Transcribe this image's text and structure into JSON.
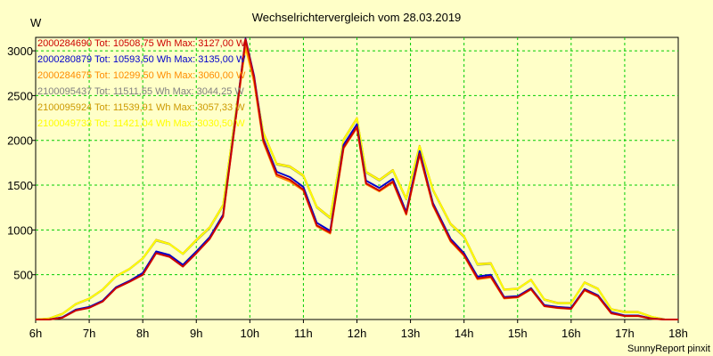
{
  "chart_data": {
    "type": "line",
    "title": "Wechselrichtervergleich vom 28.03.2019",
    "ylabel": "W",
    "xlabel": "",
    "credit": "SunnyReport pinxit",
    "xlim": [
      6,
      18
    ],
    "ylim": [
      0,
      3150
    ],
    "grid": true,
    "legend_position": "top-left",
    "x_ticks": [
      {
        "value": 6,
        "label": "6h"
      },
      {
        "value": 7,
        "label": "7h"
      },
      {
        "value": 8,
        "label": "8h"
      },
      {
        "value": 9,
        "label": "9h"
      },
      {
        "value": 10,
        "label": "10h"
      },
      {
        "value": 11,
        "label": "11h"
      },
      {
        "value": 12,
        "label": "12h"
      },
      {
        "value": 13,
        "label": "13h"
      },
      {
        "value": 14,
        "label": "14h"
      },
      {
        "value": 15,
        "label": "15h"
      },
      {
        "value": 16,
        "label": "16h"
      },
      {
        "value": 17,
        "label": "17h"
      },
      {
        "value": 18,
        "label": "18h"
      }
    ],
    "y_ticks": [
      {
        "value": 500,
        "label": "500"
      },
      {
        "value": 1000,
        "label": "1000"
      },
      {
        "value": 1500,
        "label": "1500"
      },
      {
        "value": 2000,
        "label": "2000"
      },
      {
        "value": 2500,
        "label": "2500"
      },
      {
        "value": 3000,
        "label": "3000"
      }
    ],
    "x": [
      6.0,
      6.25,
      6.5,
      6.75,
      7.0,
      7.25,
      7.5,
      7.75,
      8.0,
      8.25,
      8.5,
      8.75,
      9.0,
      9.25,
      9.5,
      9.75,
      9.92,
      10.08,
      10.25,
      10.5,
      10.75,
      11.0,
      11.25,
      11.5,
      11.75,
      12.0,
      12.17,
      12.42,
      12.67,
      12.92,
      13.17,
      13.42,
      13.75,
      14.0,
      14.25,
      14.5,
      14.75,
      15.0,
      15.25,
      15.5,
      15.75,
      16.0,
      16.25,
      16.5,
      16.75,
      17.0,
      17.25,
      17.5,
      17.75,
      18.0
    ],
    "series": [
      {
        "name": "2000284690",
        "legend_text": "2000284690 Tot: 10508,75 Wh Max: 3127,00 W",
        "color": "#cc0000",
        "values": [
          0,
          0,
          20,
          100,
          130,
          200,
          350,
          420,
          500,
          740,
          700,
          590,
          740,
          900,
          1150,
          2300,
          3127,
          2700,
          2000,
          1620,
          1560,
          1450,
          1050,
          970,
          1920,
          2150,
          1520,
          1440,
          1540,
          1180,
          1850,
          1280,
          880,
          720,
          460,
          480,
          240,
          250,
          340,
          150,
          130,
          120,
          330,
          260,
          70,
          40,
          40,
          10,
          0,
          0
        ]
      },
      {
        "name": "2000280879",
        "legend_text": "2000280879 Tot: 10593,50 Wh Max: 3135,00 W",
        "color": "#0000cc",
        "values": [
          0,
          0,
          25,
          110,
          140,
          210,
          360,
          430,
          520,
          760,
          720,
          610,
          760,
          920,
          1170,
          2320,
          3135,
          2720,
          2020,
          1650,
          1590,
          1480,
          1080,
          990,
          1950,
          2180,
          1550,
          1470,
          1570,
          1200,
          1880,
          1300,
          900,
          740,
          480,
          500,
          250,
          260,
          350,
          160,
          140,
          130,
          340,
          270,
          80,
          45,
          45,
          12,
          0,
          0
        ]
      },
      {
        "name": "2000284675",
        "legend_text": "2000284675 Tot: 10299,50 Wh Max: 3060,00 W",
        "color": "#ff8c00",
        "values": [
          0,
          0,
          22,
          105,
          135,
          205,
          355,
          425,
          510,
          750,
          710,
          600,
          750,
          910,
          1160,
          2310,
          3060,
          2650,
          1980,
          1600,
          1540,
          1440,
          1040,
          960,
          1910,
          2140,
          1510,
          1430,
          1530,
          1170,
          1840,
          1270,
          870,
          710,
          450,
          470,
          235,
          245,
          335,
          148,
          128,
          118,
          325,
          255,
          68,
          38,
          38,
          9,
          0,
          0
        ]
      },
      {
        "name": "2100095437",
        "legend_text": "2100095437 Tot: 11511,55 Wh Max: 3044,25 W",
        "color": "#808080",
        "values": [
          0,
          10,
          60,
          170,
          230,
          330,
          480,
          560,
          680,
          880,
          840,
          730,
          880,
          1020,
          1270,
          2360,
          3044,
          2660,
          2080,
          1730,
          1700,
          1600,
          1250,
          1130,
          2000,
          2240,
          1640,
          1550,
          1660,
          1340,
          1930,
          1440,
          1060,
          920,
          610,
          620,
          330,
          340,
          440,
          220,
          180,
          180,
          410,
          340,
          110,
          80,
          80,
          30,
          0,
          0
        ]
      },
      {
        "name": "2100095924",
        "legend_text": "2100095924 Tot: 11539,91 Wh Max: 3057,33 W",
        "color": "#cc9900",
        "values": [
          0,
          12,
          65,
          175,
          235,
          335,
          485,
          565,
          685,
          890,
          845,
          735,
          890,
          1030,
          1280,
          2370,
          3057,
          2670,
          2090,
          1740,
          1710,
          1610,
          1260,
          1140,
          2010,
          2250,
          1650,
          1560,
          1670,
          1350,
          1940,
          1450,
          1070,
          930,
          620,
          630,
          335,
          345,
          445,
          225,
          185,
          185,
          415,
          345,
          115,
          85,
          85,
          32,
          0,
          0
        ]
      },
      {
        "name": "2100049733",
        "legend_text": "2100049733 Tot: 11421,04 Wh Max: 3030,50 W",
        "color": "#ffff00",
        "values": [
          0,
          10,
          62,
          172,
          232,
          332,
          482,
          562,
          682,
          885,
          842,
          732,
          885,
          1025,
          1275,
          2365,
          3030,
          2655,
          2085,
          1735,
          1705,
          1605,
          1255,
          1135,
          2005,
          2245,
          1645,
          1555,
          1665,
          1345,
          1935,
          1445,
          1065,
          925,
          615,
          625,
          332,
          342,
          442,
          222,
          182,
          182,
          412,
          342,
          112,
          82,
          82,
          31,
          0,
          0
        ]
      }
    ]
  }
}
